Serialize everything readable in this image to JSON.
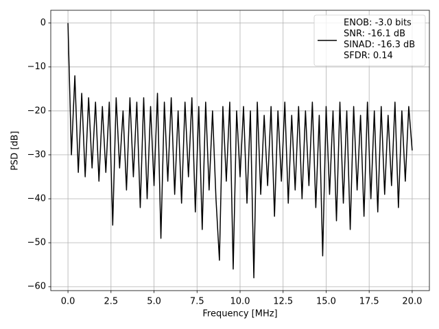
{
  "chart_data": {
    "type": "line",
    "xlabel": "Frequency [MHz]",
    "ylabel": "PSD [dB]",
    "x": [
      0,
      0.2,
      0.4,
      0.6,
      0.8,
      1,
      1.2,
      1.4,
      1.6,
      1.8,
      2,
      2.2,
      2.4,
      2.6,
      2.8,
      3,
      3.2,
      3.4,
      3.6,
      3.8,
      4,
      4.2,
      4.4,
      4.6,
      4.8,
      5,
      5.2,
      5.4,
      5.6,
      5.8,
      6,
      6.2,
      6.4,
      6.6,
      6.8,
      7,
      7.2,
      7.4,
      7.6,
      7.8,
      8,
      8.2,
      8.4,
      8.6,
      8.8,
      9,
      9.2,
      9.4,
      9.6,
      9.8,
      10,
      10.2,
      10.4,
      10.6,
      10.8,
      11,
      11.2,
      11.4,
      11.6,
      11.8,
      12,
      12.2,
      12.4,
      12.6,
      12.8,
      13,
      13.2,
      13.4,
      13.6,
      13.8,
      14,
      14.2,
      14.4,
      14.6,
      14.8,
      15,
      15.2,
      15.4,
      15.6,
      15.8,
      16,
      16.2,
      16.4,
      16.6,
      16.8,
      17,
      17.2,
      17.4,
      17.6,
      17.8,
      18,
      18.2,
      18.4,
      18.6,
      18.8,
      19,
      19.2,
      19.4,
      19.6,
      19.8,
      20
    ],
    "series": [
      {
        "name": "ENOB: -3.0 bits\nSNR: -16.1 dB\nSINAD: -16.3 dB\nSFDR: 0.14",
        "color": "#000000",
        "values": [
          0,
          -30,
          -12,
          -34,
          -16,
          -35,
          -17,
          -33,
          -18,
          -36,
          -19,
          -34,
          -18,
          -46,
          -17,
          -33,
          -20,
          -38,
          -17,
          -35,
          -18,
          -42,
          -17,
          -40,
          -19,
          -37,
          -16,
          -49,
          -18,
          -36,
          -17,
          -39,
          -20,
          -41,
          -18,
          -35,
          -17,
          -43,
          -19,
          -47,
          -18,
          -38,
          -20,
          -40,
          -54,
          -19,
          -36,
          -18,
          -56,
          -20,
          -35,
          -19,
          -41,
          -20,
          -58,
          -18,
          -39,
          -21,
          -37,
          -19,
          -44,
          -20,
          -36,
          -18,
          -41,
          -21,
          -38,
          -19,
          -40,
          -20,
          -37,
          -18,
          -42,
          -21,
          -53,
          -19,
          -39,
          -20,
          -45,
          -18,
          -41,
          -20,
          -47,
          -19,
          -38,
          -21,
          -44,
          -18,
          -40,
          -20,
          -43,
          -19,
          -39,
          -21,
          -37,
          -18,
          -42,
          -20,
          -36,
          -19,
          -29
        ]
      }
    ],
    "xlim": [
      -1,
      21
    ],
    "ylim": [
      -60.9,
      2.9
    ],
    "xticks": [
      {
        "value": 0,
        "label": "0.0"
      },
      {
        "value": 2.5,
        "label": "2.5"
      },
      {
        "value": 5,
        "label": "5.0"
      },
      {
        "value": 7.5,
        "label": "7.5"
      },
      {
        "value": 10,
        "label": "10.0"
      },
      {
        "value": 12.5,
        "label": "12.5"
      },
      {
        "value": 15,
        "label": "15.0"
      },
      {
        "value": 17.5,
        "label": "17.5"
      },
      {
        "value": 20,
        "label": "20.0"
      }
    ],
    "yticks": [
      {
        "value": -60,
        "label": "−60"
      },
      {
        "value": -50,
        "label": "−50"
      },
      {
        "value": -40,
        "label": "−40"
      },
      {
        "value": -30,
        "label": "−30"
      },
      {
        "value": -20,
        "label": "−20"
      },
      {
        "value": -10,
        "label": "−10"
      },
      0
    ],
    "grid": true,
    "legend": "upper right"
  }
}
